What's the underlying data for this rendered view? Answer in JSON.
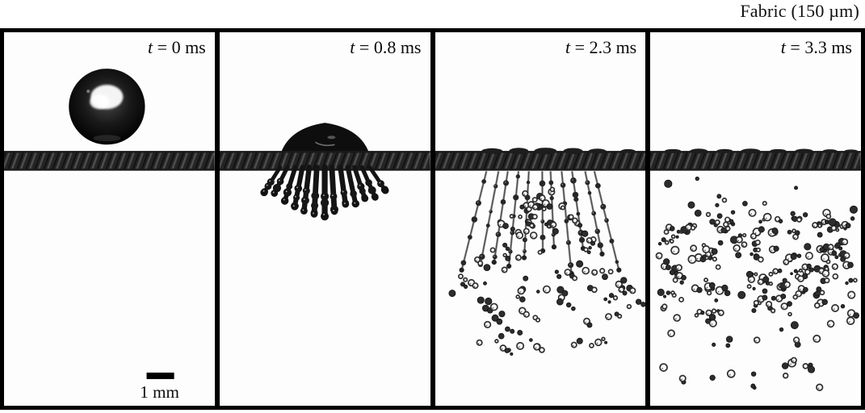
{
  "title": "Fabric (150 µm)",
  "figure": {
    "panels": [
      {
        "time_symbol": "t",
        "time_rest": " = 0 ms",
        "phase": "droplet-above-fabric",
        "description": "dark spherical droplet above the fabric"
      },
      {
        "time_symbol": "t",
        "time_rest": " = 0.8 ms",
        "phase": "impact-fingers",
        "description": "liquid dome on fabric with finger jets penetrating below"
      },
      {
        "time_symbol": "t",
        "time_rest": " = 2.3 ms",
        "phase": "ligament-spray",
        "description": "thin ligaments with beads and droplet spray fanning below fabric"
      },
      {
        "time_symbol": "t",
        "time_rest": " = 3.3 ms",
        "phase": "dispersed-spray",
        "description": "wide cloud of fragmented droplets dispersing below fabric"
      }
    ],
    "scale_bar": {
      "label": "1 mm"
    }
  },
  "colors": {
    "background": "#ffffff",
    "panel_bg": "#fdfdfd",
    "border": "#000000",
    "fabric": "#242424",
    "fabric_ridge": "#4e4e4e",
    "liquid": "#141414",
    "droplet_outline": "#2f2f2f",
    "text": "#0a0a0a"
  }
}
